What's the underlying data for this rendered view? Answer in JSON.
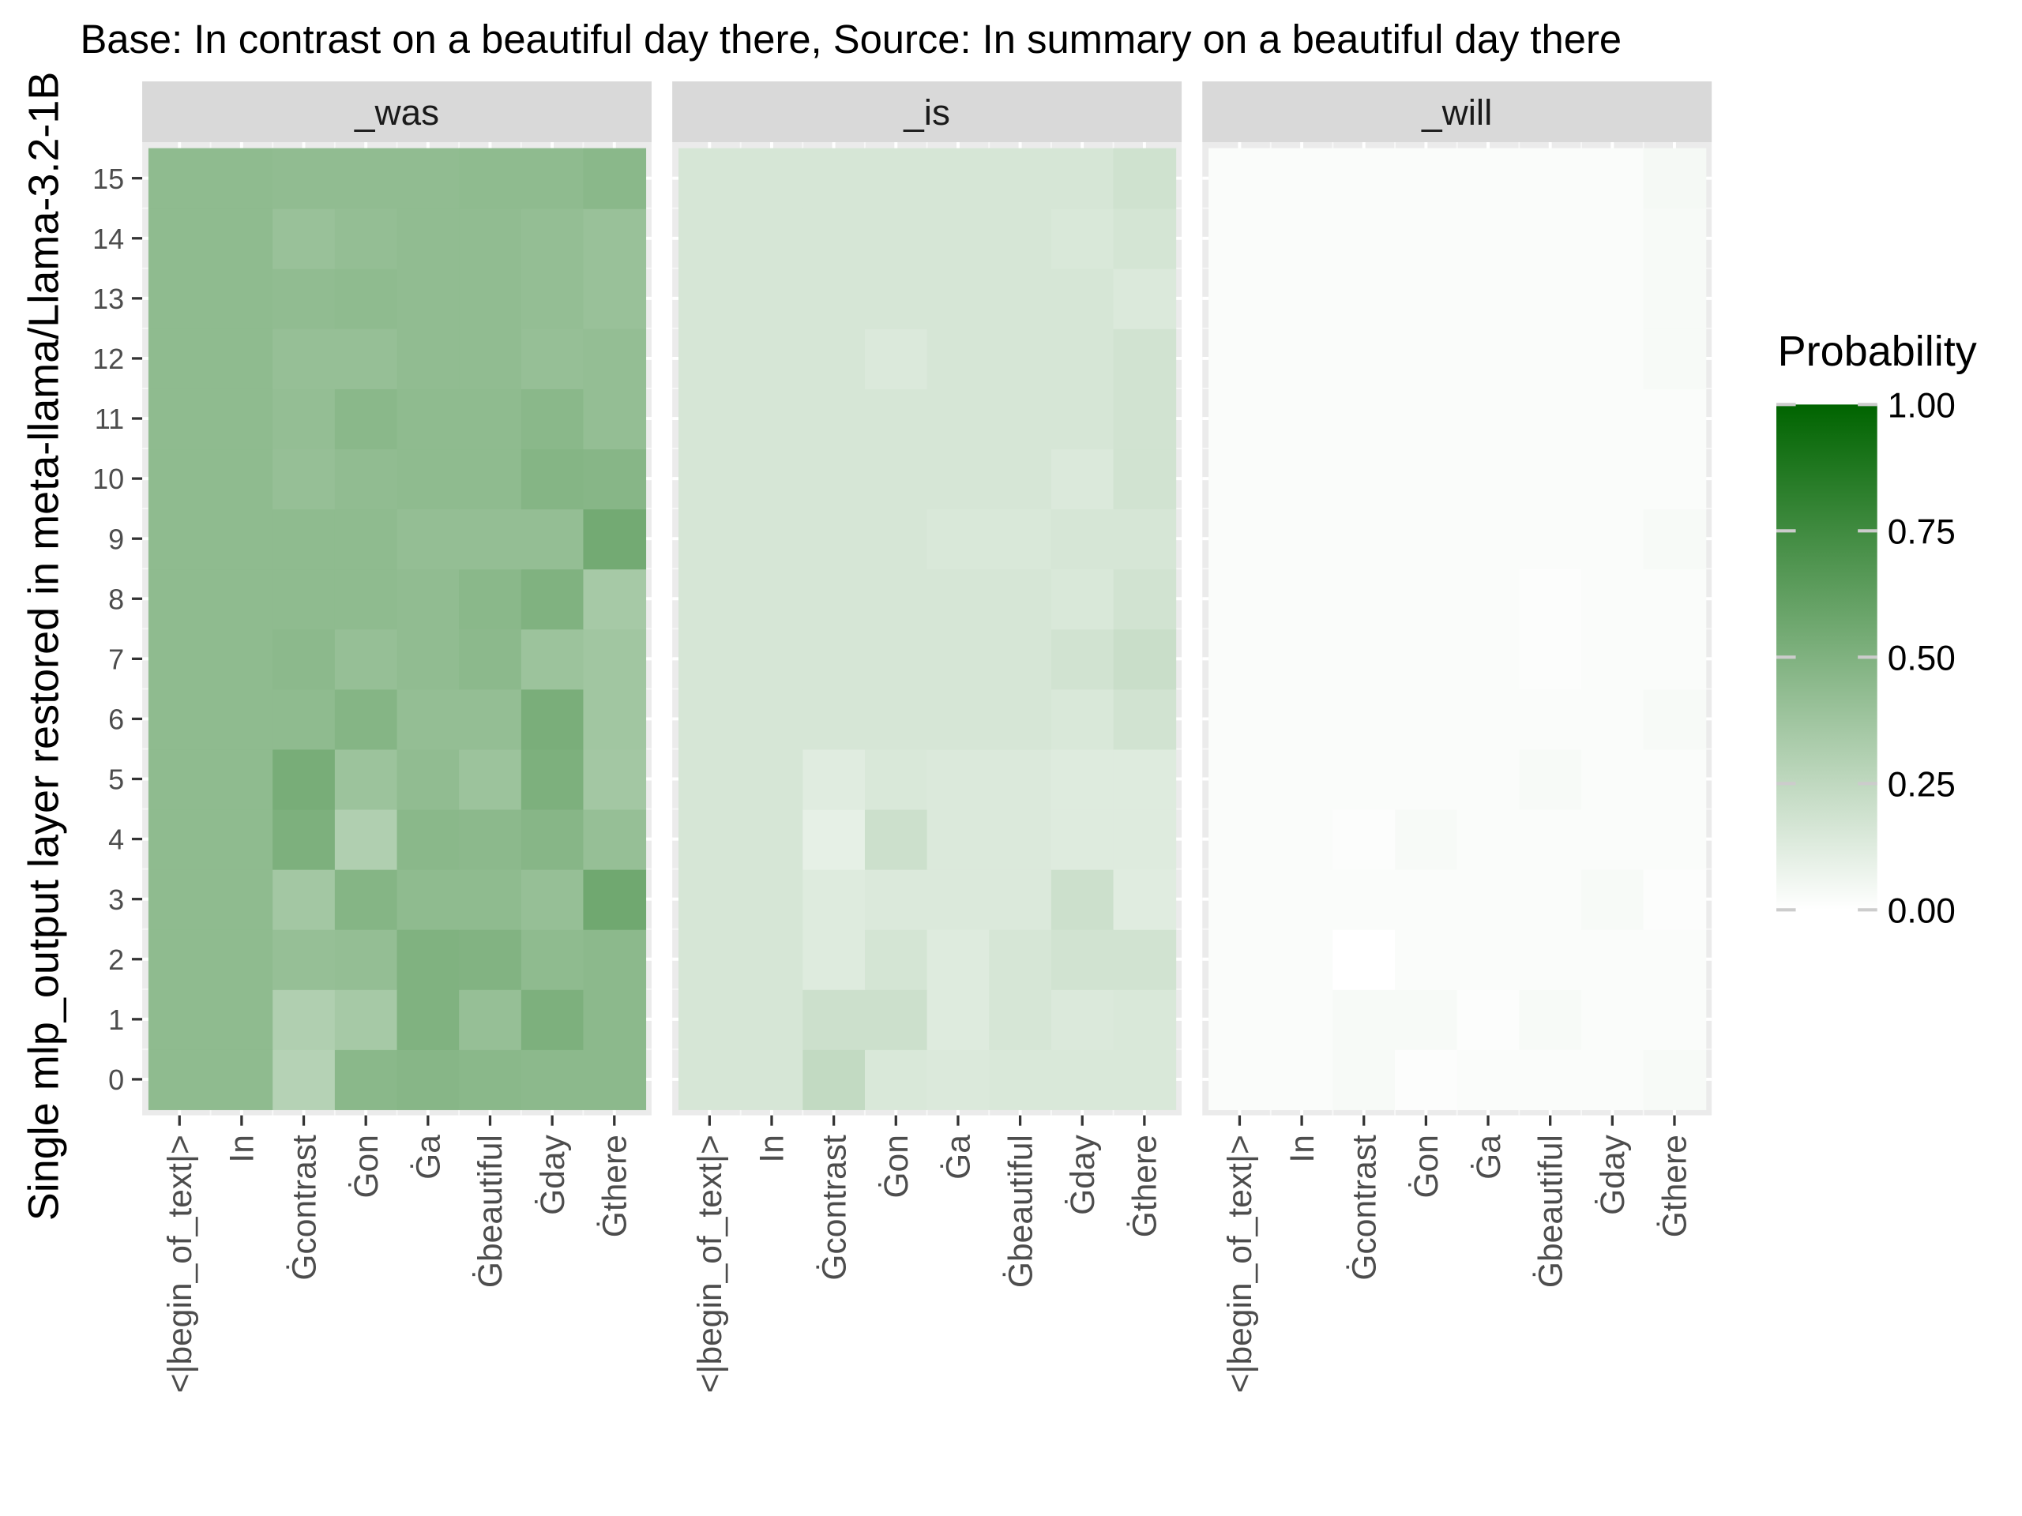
{
  "chart_data": {
    "type": "heatmap",
    "title": "Base: In contrast on a beautiful day there, Source: In summary on a beautiful day there",
    "ylabel": "Single mlp_output layer restored in meta-llama/Llama-3.2-1B",
    "xlabel": "",
    "x": [
      "<|begin_of_text|>",
      "In",
      "Ġcontrast",
      "Ġon",
      "Ġa",
      "Ġbeautiful",
      "Ġday",
      "Ġthere"
    ],
    "y": [
      "0",
      "1",
      "2",
      "3",
      "4",
      "5",
      "6",
      "7",
      "8",
      "9",
      "10",
      "11",
      "12",
      "13",
      "14",
      "15"
    ],
    "grid": true,
    "legend": {
      "title": "Probability",
      "position": "right",
      "ticks": [
        "0.00",
        "0.25",
        "0.50",
        "0.75",
        "1.00"
      ],
      "low_color": "#ffffff",
      "high_color": "#006400"
    },
    "panels": [
      {
        "name": "_was",
        "values": [
          [
            0.44,
            0.44,
            0.29,
            0.46,
            0.47,
            0.46,
            0.45,
            0.45
          ],
          [
            0.44,
            0.44,
            0.31,
            0.35,
            0.5,
            0.41,
            0.51,
            0.45
          ],
          [
            0.44,
            0.44,
            0.41,
            0.42,
            0.5,
            0.49,
            0.44,
            0.45
          ],
          [
            0.44,
            0.44,
            0.36,
            0.48,
            0.44,
            0.44,
            0.41,
            0.56
          ],
          [
            0.44,
            0.44,
            0.51,
            0.31,
            0.46,
            0.45,
            0.47,
            0.41
          ],
          [
            0.44,
            0.44,
            0.53,
            0.39,
            0.43,
            0.39,
            0.51,
            0.36
          ],
          [
            0.44,
            0.44,
            0.44,
            0.48,
            0.42,
            0.42,
            0.52,
            0.37
          ],
          [
            0.44,
            0.44,
            0.45,
            0.41,
            0.43,
            0.45,
            0.39,
            0.37
          ],
          [
            0.44,
            0.44,
            0.44,
            0.44,
            0.43,
            0.46,
            0.5,
            0.35
          ],
          [
            0.44,
            0.44,
            0.44,
            0.44,
            0.42,
            0.42,
            0.42,
            0.55
          ],
          [
            0.44,
            0.44,
            0.41,
            0.43,
            0.44,
            0.44,
            0.48,
            0.47
          ],
          [
            0.44,
            0.44,
            0.42,
            0.46,
            0.44,
            0.44,
            0.46,
            0.42
          ],
          [
            0.44,
            0.44,
            0.41,
            0.41,
            0.43,
            0.43,
            0.41,
            0.42
          ],
          [
            0.44,
            0.44,
            0.43,
            0.44,
            0.43,
            0.43,
            0.42,
            0.4
          ],
          [
            0.44,
            0.44,
            0.4,
            0.42,
            0.43,
            0.43,
            0.42,
            0.4
          ],
          [
            0.44,
            0.44,
            0.43,
            0.43,
            0.43,
            0.44,
            0.44,
            0.46
          ]
        ]
      },
      {
        "name": "_is",
        "values": [
          [
            0.16,
            0.16,
            0.24,
            0.15,
            0.14,
            0.15,
            0.15,
            0.15
          ],
          [
            0.16,
            0.16,
            0.2,
            0.2,
            0.13,
            0.16,
            0.14,
            0.15
          ],
          [
            0.16,
            0.16,
            0.13,
            0.17,
            0.13,
            0.16,
            0.18,
            0.18
          ],
          [
            0.16,
            0.16,
            0.13,
            0.14,
            0.14,
            0.14,
            0.2,
            0.12
          ],
          [
            0.16,
            0.16,
            0.1,
            0.2,
            0.14,
            0.14,
            0.13,
            0.13
          ],
          [
            0.16,
            0.16,
            0.12,
            0.15,
            0.14,
            0.14,
            0.13,
            0.13
          ],
          [
            0.16,
            0.16,
            0.16,
            0.16,
            0.16,
            0.16,
            0.15,
            0.18
          ],
          [
            0.16,
            0.16,
            0.16,
            0.16,
            0.16,
            0.16,
            0.18,
            0.21
          ],
          [
            0.16,
            0.16,
            0.16,
            0.16,
            0.16,
            0.16,
            0.15,
            0.18
          ],
          [
            0.16,
            0.16,
            0.16,
            0.16,
            0.15,
            0.15,
            0.16,
            0.16
          ],
          [
            0.16,
            0.16,
            0.16,
            0.16,
            0.16,
            0.16,
            0.14,
            0.18
          ],
          [
            0.16,
            0.16,
            0.16,
            0.16,
            0.16,
            0.16,
            0.16,
            0.18
          ],
          [
            0.16,
            0.16,
            0.16,
            0.14,
            0.16,
            0.16,
            0.16,
            0.18
          ],
          [
            0.16,
            0.16,
            0.16,
            0.16,
            0.16,
            0.16,
            0.16,
            0.14
          ],
          [
            0.16,
            0.16,
            0.16,
            0.16,
            0.16,
            0.16,
            0.15,
            0.17
          ],
          [
            0.16,
            0.16,
            0.16,
            0.16,
            0.16,
            0.16,
            0.16,
            0.19
          ]
        ]
      },
      {
        "name": "_will",
        "values": [
          [
            0.02,
            0.02,
            0.03,
            0.01,
            0.02,
            0.02,
            0.02,
            0.03
          ],
          [
            0.02,
            0.02,
            0.03,
            0.03,
            0.01,
            0.03,
            0.02,
            0.02
          ],
          [
            0.02,
            0.02,
            0.0,
            0.02,
            0.02,
            0.02,
            0.02,
            0.02
          ],
          [
            0.02,
            0.02,
            0.02,
            0.02,
            0.02,
            0.02,
            0.03,
            0.01
          ],
          [
            0.02,
            0.02,
            0.01,
            0.03,
            0.02,
            0.02,
            0.02,
            0.02
          ],
          [
            0.02,
            0.02,
            0.02,
            0.02,
            0.02,
            0.03,
            0.02,
            0.02
          ],
          [
            0.02,
            0.02,
            0.02,
            0.02,
            0.02,
            0.02,
            0.02,
            0.03
          ],
          [
            0.02,
            0.02,
            0.02,
            0.02,
            0.02,
            0.01,
            0.02,
            0.02
          ],
          [
            0.02,
            0.02,
            0.02,
            0.02,
            0.02,
            0.01,
            0.02,
            0.02
          ],
          [
            0.02,
            0.02,
            0.02,
            0.02,
            0.02,
            0.02,
            0.02,
            0.03
          ],
          [
            0.02,
            0.02,
            0.02,
            0.02,
            0.02,
            0.02,
            0.02,
            0.02
          ],
          [
            0.02,
            0.02,
            0.02,
            0.02,
            0.02,
            0.02,
            0.02,
            0.02
          ],
          [
            0.02,
            0.02,
            0.02,
            0.02,
            0.02,
            0.02,
            0.02,
            0.03
          ],
          [
            0.02,
            0.02,
            0.02,
            0.02,
            0.02,
            0.02,
            0.02,
            0.03
          ],
          [
            0.02,
            0.02,
            0.02,
            0.02,
            0.02,
            0.02,
            0.02,
            0.03
          ],
          [
            0.02,
            0.02,
            0.02,
            0.02,
            0.02,
            0.02,
            0.02,
            0.04
          ]
        ]
      }
    ]
  }
}
